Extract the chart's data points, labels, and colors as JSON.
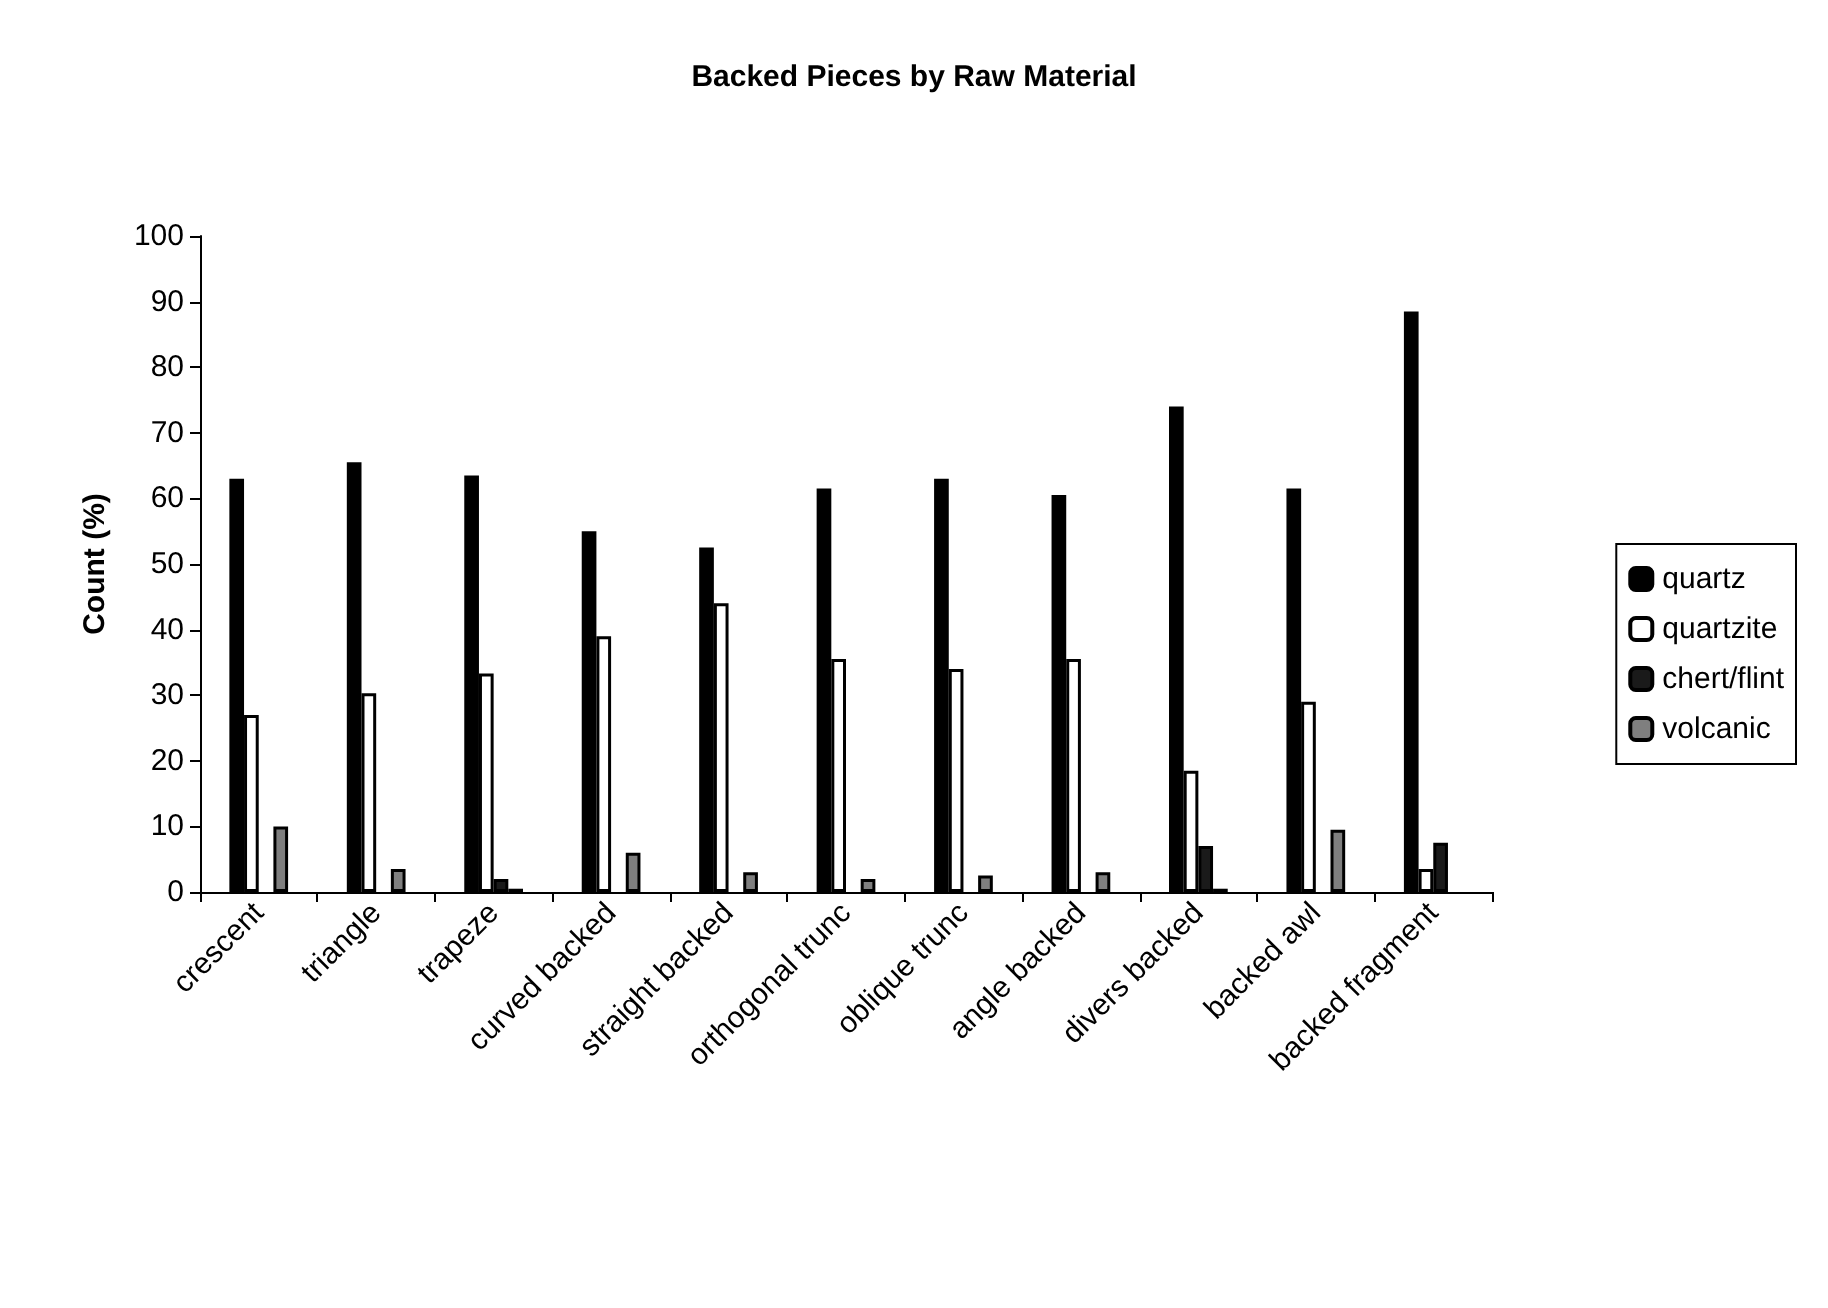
{
  "chart_data": {
    "type": "bar",
    "title": "Backed Pieces by Raw Material",
    "ylabel": "Count (%)",
    "categories": [
      "crescent",
      "triangle",
      "trapeze",
      "curved backed",
      "straight backed",
      "orthogonal trunc",
      "oblique trunc",
      "angle backed",
      "divers backed",
      "backed awl",
      "backed fragment"
    ],
    "series": [
      {
        "name": "quartz",
        "color": "#000000",
        "values": [
          63,
          65.5,
          63.5,
          55,
          52.5,
          61.5,
          63,
          60.5,
          74,
          61.5,
          88.5
        ]
      },
      {
        "name": "quartzite",
        "color": "#ffffff",
        "values": [
          27,
          30.3,
          33.3,
          39,
          44,
          35.5,
          34,
          35.5,
          18.5,
          29,
          3.5
        ]
      },
      {
        "name": "chert/flint",
        "color": "#1a1a1a",
        "values": [
          null,
          null,
          2,
          null,
          null,
          null,
          null,
          null,
          7,
          null,
          7.5
        ]
      },
      {
        "name": "volcanic",
        "color": "#7f7f7f",
        "values": [
          10,
          3.5,
          0.5,
          6,
          3,
          2,
          2.5,
          3,
          0.5,
          9.5,
          null
        ]
      }
    ],
    "ylim": [
      0,
      100
    ],
    "yticks": [
      0,
      10,
      20,
      30,
      40,
      50,
      60,
      70,
      80,
      90,
      100
    ],
    "grid": false,
    "legend": "right"
  }
}
